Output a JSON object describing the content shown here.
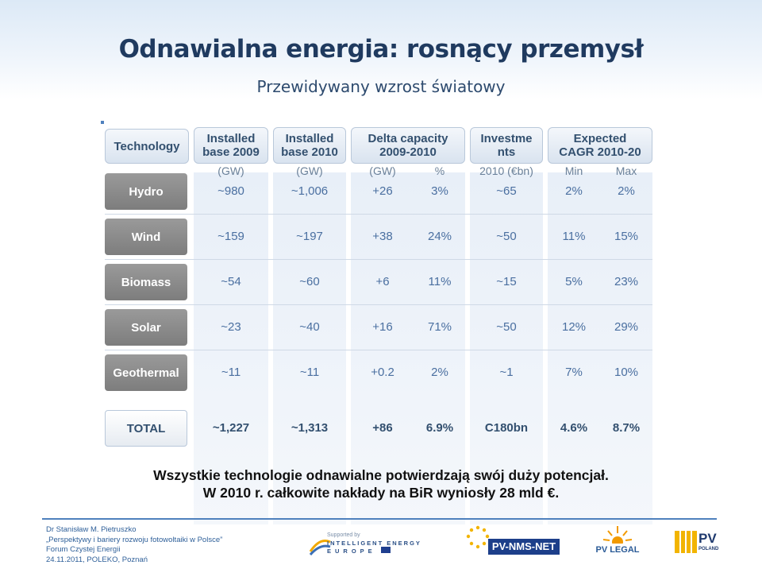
{
  "slide": {
    "title": "Odnawialna energia: rosnący przemysł",
    "subtitle": "Przewidywany wzrost światowy"
  },
  "table": {
    "technology_header": "Technology",
    "columns": [
      {
        "line1": "Installed",
        "line2": "base 2009"
      },
      {
        "line1": "Installed",
        "line2": "base 2010"
      },
      {
        "line1": "Delta capacity",
        "line2": "2009-2010"
      },
      {
        "line1": "Investme",
        "line2": "nts"
      },
      {
        "line1": "Expected",
        "line2": "CAGR 2010-20"
      }
    ],
    "units": [
      "(GW)",
      "(GW)",
      "(GW)",
      "%",
      "2010 (€bn)",
      "Min",
      "Max"
    ],
    "rows": [
      {
        "tech": "Hydro",
        "values": [
          "~980",
          "~1,006",
          "+26",
          "3%",
          "~65",
          "2%",
          "2%"
        ]
      },
      {
        "tech": "Wind",
        "values": [
          "~159",
          "~197",
          "+38",
          "24%",
          "~50",
          "11%",
          "15%"
        ]
      },
      {
        "tech": "Biomass",
        "values": [
          "~54",
          "~60",
          "+6",
          "11%",
          "~15",
          "5%",
          "23%"
        ]
      },
      {
        "tech": "Solar",
        "values": [
          "~23",
          "~40",
          "+16",
          "71%",
          "~50",
          "12%",
          "29%"
        ]
      },
      {
        "tech": "Geothermal",
        "values": [
          "~11",
          "~11",
          "+0.2",
          "2%",
          "~1",
          "7%",
          "10%"
        ]
      }
    ],
    "total": {
      "tech": "TOTAL",
      "values": [
        "~1,227",
        "~1,313",
        "+86",
        "6.9%",
        "C180bn",
        "4.6%",
        "8.7%"
      ]
    }
  },
  "summary": {
    "line1": "Wszystkie technologie odnawialne potwierdzają swój duży potencjał.",
    "line2": "W 2010 r. całkowite nakłady na BiR wyniosły 28 mld €."
  },
  "footer": {
    "author": "Dr Stanisław M. Pietruszko",
    "talk": "„Perspektywy i bariery rozwoju fotowoltaiki w Polsce”",
    "event": "Forum Czystej Energii",
    "date_place": "24.11.2011, POLEKO, Poznań"
  },
  "logos": {
    "iee_supported": "Supported by",
    "iee_line1": "INTELLIGENT ENERGY",
    "iee_line2": "EUROPE",
    "pvnms": "PV-NMS-NET",
    "pvlegal": "PV LEGAL",
    "pvpoland_big": "PV",
    "pvpoland_small": "POLAND"
  },
  "colors": {
    "title": "#1f3a5f",
    "tech_box": "#8a8a8a",
    "value_text": "#4a6fa0",
    "footer_text": "#2e5f99",
    "accent": "#4f81bd"
  }
}
